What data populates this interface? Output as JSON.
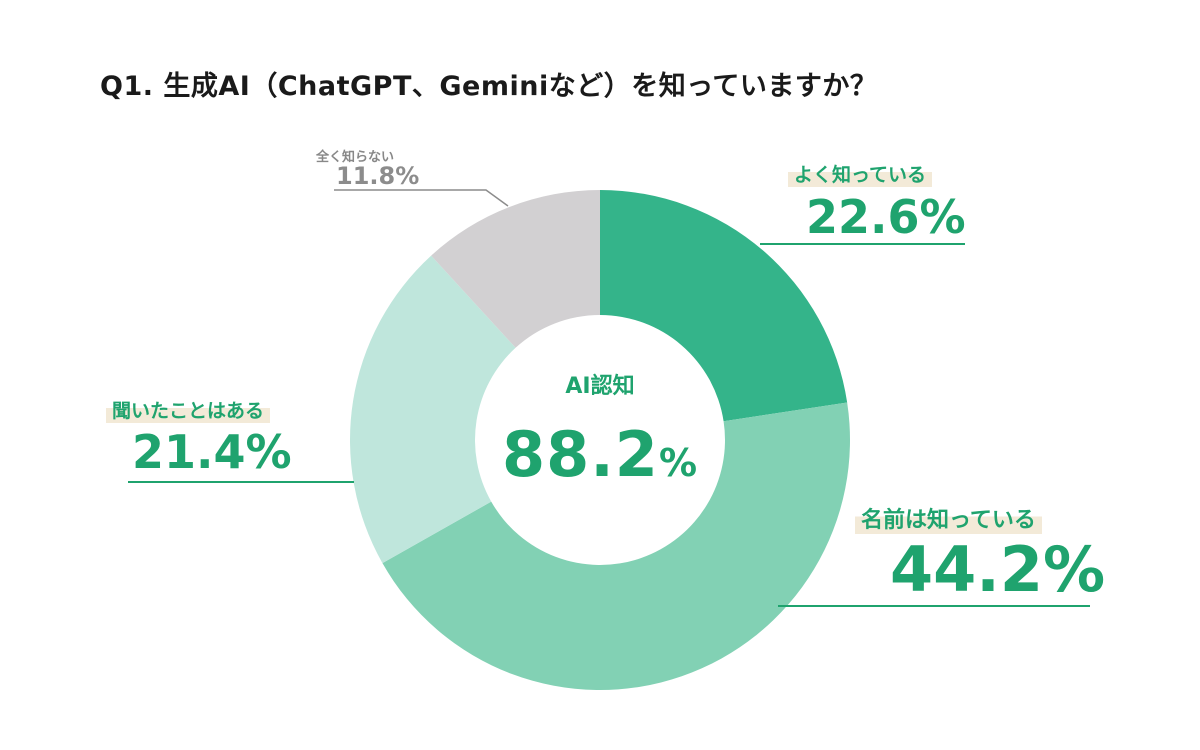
{
  "title": "Q1. 生成AI（ChatGPT、Geminiなど）を知っていますか？",
  "center": {
    "label": "AI認知",
    "value": "88.2",
    "unit": "%"
  },
  "labels": {
    "well_known": {
      "category": "よく知っている",
      "value": "22.6%"
    },
    "name_known": {
      "category": "名前は知っている",
      "value": "44.2%"
    },
    "heard": {
      "category": "聞いたことはある",
      "value": "21.4%"
    },
    "unknown": {
      "category": "全く知らない",
      "value": "11.8%"
    }
  },
  "colors": {
    "well_known": "#34b48a",
    "name_known": "#82d1b4",
    "heard": "#bfe6dc",
    "unknown": "#d2d0d2",
    "accent": "#1fa36e",
    "line": "#1fa36e"
  },
  "chart_data": {
    "type": "pie",
    "subtype": "donut",
    "title": "Q1. 生成AI（ChatGPT、Geminiなど）を知っていますか？",
    "categories": [
      "よく知っている",
      "名前は知っている",
      "聞いたことはある",
      "全く知らない"
    ],
    "values": [
      22.6,
      44.2,
      21.4,
      11.8
    ],
    "unit": "%",
    "center_annotation": {
      "label": "AI認知",
      "value": 88.2
    },
    "start_angle": "12 o'clock, clockwise",
    "legend": "callout labels"
  }
}
